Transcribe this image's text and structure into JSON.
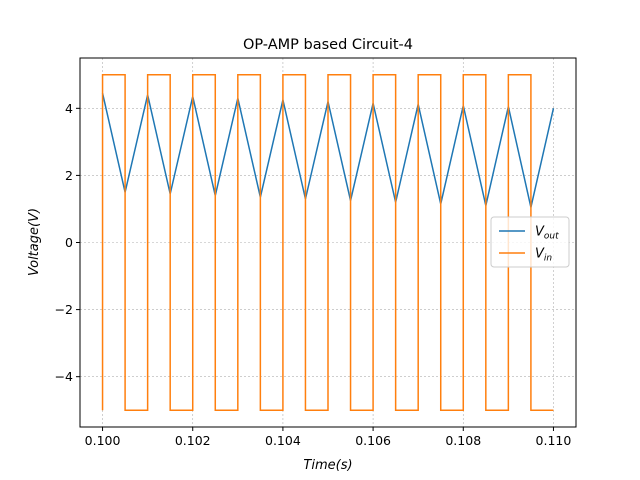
{
  "chart_data": {
    "type": "line",
    "title": "OP-AMP based Circuit-4",
    "xlabel": "Time(s)",
    "ylabel": "Voltage(V)",
    "xlim": [
      0.0995,
      0.1105
    ],
    "ylim": [
      -5.5,
      5.5
    ],
    "xticks": [
      0.1,
      0.102,
      0.104,
      0.106,
      0.108,
      0.11
    ],
    "xtick_labels": [
      "0.100",
      "0.102",
      "0.104",
      "0.106",
      "0.108",
      "0.110"
    ],
    "yticks": [
      -4,
      -2,
      0,
      2,
      4
    ],
    "ytick_labels": [
      "−4",
      "−2",
      "0",
      "2",
      "4"
    ],
    "grid": true,
    "legend_position": "center-right",
    "series": [
      {
        "name": "V_out",
        "legend_main": "V",
        "legend_sub": "out",
        "color": "#1f77b4",
        "x": [
          0.1,
          0.1005,
          0.101,
          0.1015,
          0.102,
          0.1025,
          0.103,
          0.1035,
          0.104,
          0.1045,
          0.105,
          0.1055,
          0.106,
          0.1065,
          0.107,
          0.1075,
          0.108,
          0.1085,
          0.109,
          0.1095,
          0.11
        ],
        "y": [
          4.45,
          1.5,
          4.4,
          1.45,
          4.35,
          1.4,
          4.3,
          1.35,
          4.25,
          1.3,
          4.2,
          1.25,
          4.15,
          1.2,
          4.12,
          1.15,
          4.08,
          1.1,
          4.05,
          1.05,
          4.0
        ]
      },
      {
        "name": "V_in",
        "legend_main": "V",
        "legend_sub": "in",
        "color": "#ff7f0e",
        "x": [
          0.1,
          0.1,
          0.1005,
          0.1005,
          0.101,
          0.101,
          0.1015,
          0.1015,
          0.102,
          0.102,
          0.1025,
          0.1025,
          0.103,
          0.103,
          0.1035,
          0.1035,
          0.104,
          0.104,
          0.1045,
          0.1045,
          0.105,
          0.105,
          0.1055,
          0.1055,
          0.106,
          0.106,
          0.1065,
          0.1065,
          0.107,
          0.107,
          0.1075,
          0.1075,
          0.108,
          0.108,
          0.1085,
          0.1085,
          0.109,
          0.109,
          0.1095,
          0.1095,
          0.11
        ],
        "y": [
          -5,
          5,
          5,
          -5,
          -5,
          5,
          5,
          -5,
          -5,
          5,
          5,
          -5,
          -5,
          5,
          5,
          -5,
          -5,
          5,
          5,
          -5,
          -5,
          5,
          5,
          -5,
          -5,
          5,
          5,
          -5,
          -5,
          5,
          5,
          -5,
          -5,
          5,
          5,
          -5,
          -5,
          5,
          5,
          -5,
          -5
        ]
      }
    ]
  }
}
